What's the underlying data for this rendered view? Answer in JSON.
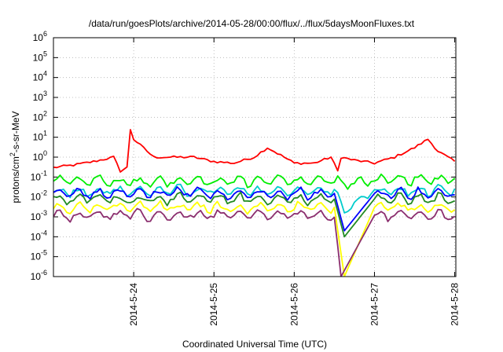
{
  "chart_data": {
    "type": "line",
    "title": "/data/run/goesPlots/archive/2014-05-28/00:00/flux/../flux/5daysMoonFluxes.txt",
    "xlabel": "Coordinated Universal Time (UTC)",
    "ylabel_parts": [
      "protons/cm",
      "2",
      "-s-sr-MeV"
    ],
    "yscale": "log",
    "ylim": [
      1e-06,
      1000000.0
    ],
    "xlim": [
      "2014-05-23 00:00",
      "2014-05-28 00:20"
    ],
    "y_ticks": [
      {
        "base": "10",
        "exp": "-6"
      },
      {
        "base": "10",
        "exp": "-5"
      },
      {
        "base": "10",
        "exp": "-4"
      },
      {
        "base": "10",
        "exp": "-3"
      },
      {
        "base": "10",
        "exp": "-2"
      },
      {
        "base": "10",
        "exp": "-1"
      },
      {
        "base": "10",
        "exp": "0"
      },
      {
        "base": "10",
        "exp": "1"
      },
      {
        "base": "10",
        "exp": "2"
      },
      {
        "base": "10",
        "exp": "3"
      },
      {
        "base": "10",
        "exp": "4"
      },
      {
        "base": "10",
        "exp": "5"
      },
      {
        "base": "10",
        "exp": "6"
      }
    ],
    "x_ticks": [
      "2014-5-24",
      "2014-5-25",
      "2014-5-26",
      "2014-5-27",
      "2014-5-28"
    ],
    "grid": true,
    "legend": "none",
    "series": [
      {
        "color": "#ff0000",
        "points": [
          [
            "2014-05-23 00:00",
            0.3
          ],
          [
            "2014-05-23 06:00",
            0.4
          ],
          [
            "2014-05-23 12:00",
            0.6
          ],
          [
            "2014-05-23 18:00",
            1.0
          ],
          [
            "2014-05-23 20:00",
            0.2
          ],
          [
            "2014-05-23 22:00",
            0.3
          ],
          [
            "2014-05-23 23:00",
            25
          ],
          [
            "2014-05-24 00:00",
            8
          ],
          [
            "2014-05-24 06:00",
            1.0
          ],
          [
            "2014-05-24 12:00",
            1.0
          ],
          [
            "2014-05-24 18:00",
            1.0
          ],
          [
            "2014-05-25 00:00",
            0.6
          ],
          [
            "2014-05-25 06:00",
            0.5
          ],
          [
            "2014-05-25 12:00",
            1.0
          ],
          [
            "2014-05-25 16:00",
            3.0
          ],
          [
            "2014-05-25 21:00",
            1.0
          ],
          [
            "2014-05-26 00:00",
            0.5
          ],
          [
            "2014-05-26 06:00",
            0.5
          ],
          [
            "2014-05-26 11:00",
            1.0
          ],
          [
            "2014-05-26 13:00",
            0.2
          ],
          [
            "2014-05-26 14:00",
            1.0
          ],
          [
            "2014-05-26 18:00",
            0.7
          ],
          [
            "2014-05-27 00:00",
            0.5
          ],
          [
            "2014-05-27 06:00",
            1.0
          ],
          [
            "2014-05-27 12:00",
            3.0
          ],
          [
            "2014-05-27 16:00",
            8.0
          ],
          [
            "2014-05-27 19:00",
            2.0
          ],
          [
            "2014-05-28 00:00",
            0.6
          ]
        ]
      },
      {
        "color": "#00ee00",
        "points": [
          [
            "2014-05-23 00:00",
            0.07
          ],
          [
            "2014-05-24 00:00",
            0.06
          ],
          [
            "2014-05-25 00:00",
            0.06
          ],
          [
            "2014-05-26 00:00",
            0.07
          ],
          [
            "2014-05-26 12:00",
            0.07
          ],
          [
            "2014-05-26 15:00",
            0.04
          ],
          [
            "2014-05-27 00:00",
            0.07
          ],
          [
            "2014-05-28 00:00",
            0.08
          ]
        ]
      },
      {
        "color": "#00cccc",
        "points": [
          [
            "2014-05-23 00:00",
            0.02
          ],
          [
            "2014-05-24 00:00",
            0.02
          ],
          [
            "2014-05-25 00:00",
            0.02
          ],
          [
            "2014-05-26 00:00",
            0.02
          ],
          [
            "2014-05-26 12:00",
            0.02
          ],
          [
            "2014-05-26 15:00",
            0.002
          ],
          [
            "2014-05-27 00:00",
            0.02
          ],
          [
            "2014-05-28 00:00",
            0.02
          ]
        ]
      },
      {
        "color": "#0000ff",
        "points": [
          [
            "2014-05-23 00:00",
            0.015
          ],
          [
            "2014-05-24 00:00",
            0.015
          ],
          [
            "2014-05-25 00:00",
            0.015
          ],
          [
            "2014-05-26 00:00",
            0.015
          ],
          [
            "2014-05-26 12:00",
            0.015
          ],
          [
            "2014-05-26 15:00",
            0.0002
          ],
          [
            "2014-05-27 00:00",
            0.015
          ],
          [
            "2014-05-28 00:00",
            0.015
          ]
        ]
      },
      {
        "color": "#228b22",
        "points": [
          [
            "2014-05-23 00:00",
            0.008
          ],
          [
            "2014-05-24 00:00",
            0.008
          ],
          [
            "2014-05-25 00:00",
            0.008
          ],
          [
            "2014-05-26 00:00",
            0.008
          ],
          [
            "2014-05-26 12:00",
            0.008
          ],
          [
            "2014-05-26 15:00",
            0.0001
          ],
          [
            "2014-05-27 00:00",
            0.008
          ],
          [
            "2014-05-28 00:00",
            0.008
          ]
        ]
      },
      {
        "color": "#ffff00",
        "points": [
          [
            "2014-05-23 00:00",
            0.003
          ],
          [
            "2014-05-24 00:00",
            0.003
          ],
          [
            "2014-05-25 00:00",
            0.003
          ],
          [
            "2014-05-26 00:00",
            0.003
          ],
          [
            "2014-05-26 12:00",
            0.003
          ],
          [
            "2014-05-26 15:00",
            1e-06
          ],
          [
            "2014-05-27 00:00",
            0.003
          ],
          [
            "2014-05-28 00:00",
            0.003
          ]
        ]
      },
      {
        "color": "#8b2e6e",
        "points": [
          [
            "2014-05-23 00:00",
            0.0012
          ],
          [
            "2014-05-24 00:00",
            0.0012
          ],
          [
            "2014-05-25 00:00",
            0.0012
          ],
          [
            "2014-05-26 00:00",
            0.0012
          ],
          [
            "2014-05-26 12:00",
            0.0012
          ],
          [
            "2014-05-26 14:00",
            1e-06
          ],
          [
            "2014-05-27 00:00",
            0.0012
          ],
          [
            "2014-05-28 00:00",
            0.0012
          ]
        ]
      }
    ]
  }
}
